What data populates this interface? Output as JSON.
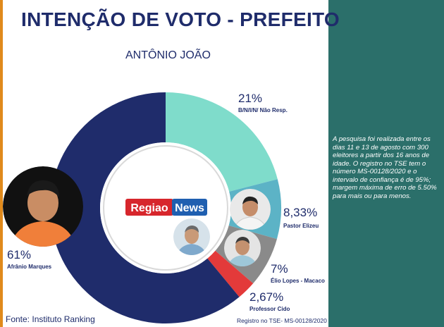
{
  "header": {
    "title": "INTENÇÃO DE VOTO - PREFEITO",
    "subtitle": "ANTÔNIO JOÃO"
  },
  "chart_data": {
    "type": "pie",
    "title": "INTENÇÃO DE VOTO - PREFEITO",
    "subtitle": "ANTÔNIO JOÃO",
    "slices": [
      {
        "label": "B/N/I/N/ Não Resp.",
        "value": 21,
        "value_label": "21%",
        "color": "#7fdccb"
      },
      {
        "label": "Pastor Elizeu",
        "value": 8.33,
        "value_label": "8,33%",
        "color": "#5cb3c6"
      },
      {
        "label": "Élio Lopes - Macaco",
        "value": 7,
        "value_label": "7%",
        "color": "#8a8a8a"
      },
      {
        "label": "Professor Cido",
        "value": 2.67,
        "value_label": "2,67%",
        "color": "#e33a3a"
      },
      {
        "label": "Afrânio Marques",
        "value": 61,
        "value_label": "61%",
        "color": "#1f2c6b"
      }
    ]
  },
  "logo": {
    "part1": "Regiao",
    "part2": "News"
  },
  "note": "A pesquisa foi realizada entre os dias 11 e 13 de agosto com 300 eleitores a partir dos 16 anos de idade. O registro no TSE tem o número MS-00128/2020 e o intervalo de confiança é de 95%; margem máxima de erro de 5.50% para mais ou para menos.",
  "footer": {
    "source": "Fonte: Instituto Ranking",
    "registration": "Registro no TSE- MS-00128/2020"
  },
  "colors": {
    "panel": "#2b6f6a",
    "title": "#1f2c6b",
    "stripe": "#e08a1c"
  }
}
